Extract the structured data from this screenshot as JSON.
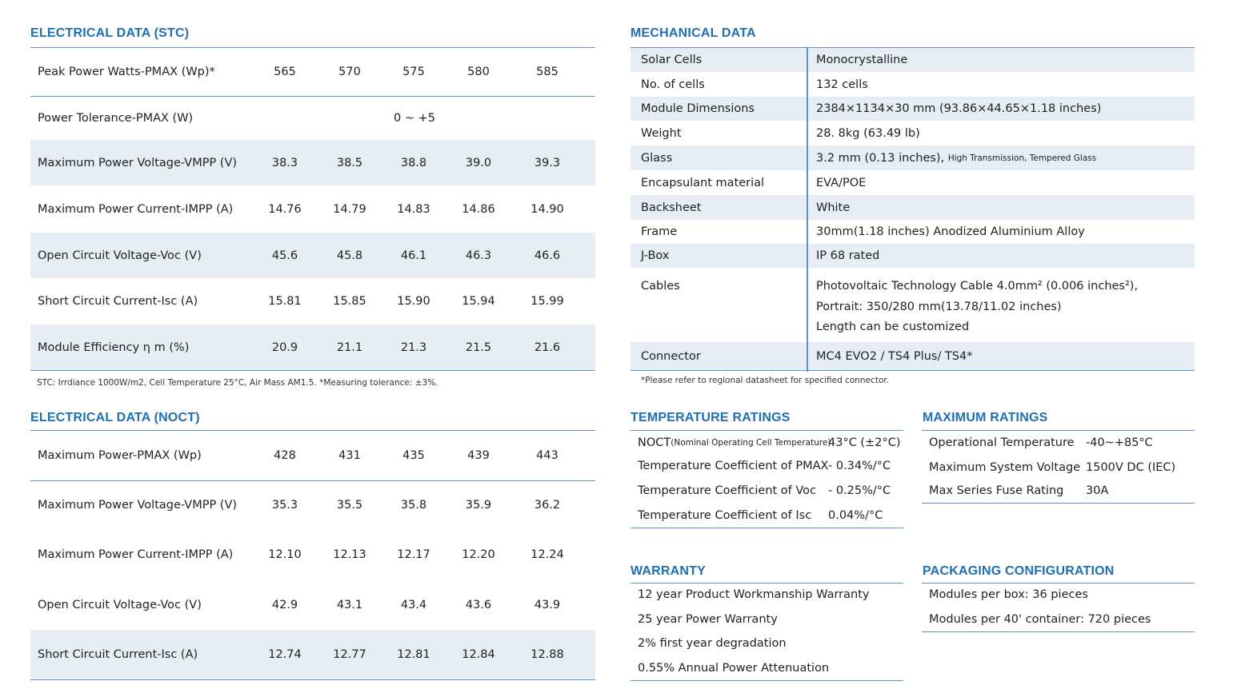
{
  "stc": {
    "title": "ELECTRICAL DATA (STC)",
    "rows": [
      {
        "label": "Peak Power Watts-PMAX (Wp)*",
        "values": [
          "565",
          "570",
          "575",
          "580",
          "585"
        ]
      },
      {
        "label": "Power Tolerance-PMAX (W)",
        "span": "0 ~ +5"
      },
      {
        "label": "Maximum Power Voltage-VMPP (V)",
        "values": [
          "38.3",
          "38.5",
          "38.8",
          "39.0",
          "39.3"
        ]
      },
      {
        "label": "Maximum Power Current-IMPP (A)",
        "values": [
          "14.76",
          "14.79",
          "14.83",
          "14.86",
          "14.90"
        ]
      },
      {
        "label": "Open Circuit Voltage-Voc (V)",
        "values": [
          "45.6",
          "45.8",
          "46.1",
          "46.3",
          "46.6"
        ]
      },
      {
        "label": "Short Circuit Current-Isc (A)",
        "values": [
          "15.81",
          "15.85",
          "15.90",
          "15.94",
          "15.99"
        ]
      },
      {
        "label": "Module Efficiency η m (%)",
        "values": [
          "20.9",
          "21.1",
          "21.3",
          "21.5",
          "21.6"
        ]
      }
    ],
    "note": "STC: Irrdiance 1000W/m2, Cell Temperature 25°C, Air Mass AM1.5.   *Measuring tolerance: ±3%."
  },
  "noct": {
    "title": "ELECTRICAL DATA (NOCT)",
    "rows": [
      {
        "label": "Maximum Power-PMAX (Wp)",
        "values": [
          "428",
          "431",
          "435",
          "439",
          "443"
        ]
      },
      {
        "label": "Maximum Power Voltage-VMPP (V)",
        "values": [
          "35.3",
          "35.5",
          "35.8",
          "35.9",
          "36.2"
        ]
      },
      {
        "label": "Maximum Power Current-IMPP (A)",
        "values": [
          "12.10",
          "12.13",
          "12.17",
          "12.20",
          "12.24"
        ]
      },
      {
        "label": "Open Circuit Voltage-Voc (V)",
        "values": [
          "42.9",
          "43.1",
          "43.4",
          "43.6",
          "43.9"
        ]
      },
      {
        "label": "Short Circuit Current-Isc (A)",
        "values": [
          "12.74",
          "12.77",
          "12.81",
          "12.84",
          "12.88"
        ]
      }
    ]
  },
  "mechanical": {
    "title": "MECHANICAL DATA",
    "rows": [
      {
        "key": "Solar Cells",
        "value": "Monocrystalline"
      },
      {
        "key": "No. of cells",
        "value": "132 cells"
      },
      {
        "key": "Module Dimensions",
        "value": "2384×1134×30 mm (93.86×44.65×1.18 inches)"
      },
      {
        "key": "Weight",
        "value": "28. 8kg (63.49 lb)"
      },
      {
        "key": "Glass",
        "value": "3.2 mm (0.13 inches),",
        "value_small": "High Transmission,  Tempered Glass"
      },
      {
        "key": "Encapsulant material",
        "value": "EVA/POE"
      },
      {
        "key": "Backsheet",
        "value": "White"
      },
      {
        "key": "Frame",
        "value": "30mm(1.18 inches)  Anodized  Aluminium Alloy"
      },
      {
        "key": "J-Box",
        "value": "IP 68 rated"
      },
      {
        "key": "Cables",
        "lines": [
          "Photovoltaic Technology Cable 4.0mm² (0.006 inches²),",
          "Portrait: 350/280 mm(13.78/11.02 inches)",
          "Length can be customized"
        ]
      },
      {
        "key": "Connector",
        "value": "MC4 EVO2 / TS4 Plus/ TS4*"
      }
    ],
    "note": "*Please refer to regional datasheet for specified connector."
  },
  "temperature": {
    "title": "TEMPERATURE RATINGS",
    "rows": [
      {
        "key": "NOCT",
        "key_small": "(Nominal Operating Cell Temperature)",
        "value": "43°C (±2°C)"
      },
      {
        "key": "Temperature Coefficient of PMAX",
        "value": "- 0.34%/°C"
      },
      {
        "key": "Temperature Coefficient of Voc",
        "value": "- 0.25%/°C"
      },
      {
        "key": "Temperature Coefficient of Isc",
        "value": "0.04%/°C"
      }
    ]
  },
  "maximum": {
    "title": "MAXIMUM RATINGS",
    "rows": [
      {
        "key": "Operational Temperature",
        "value": "-40~+85°C"
      },
      {
        "key": "Maximum System Voltage",
        "value": "1500V DC (IEC)"
      },
      {
        "key": "Max Series Fuse Rating",
        "value": "30A"
      }
    ]
  },
  "warranty": {
    "title": "WARRANTY",
    "items": [
      "12 year Product Workmanship Warranty",
      "25 year Power Warranty",
      "2% first year degradation",
      "0.55% Annual Power Attenuation"
    ]
  },
  "packaging": {
    "title": "PACKAGING CONFIGURATION",
    "items": [
      "Modules per box:  36 pieces",
      "Modules per 40' container: 720 pieces"
    ]
  }
}
